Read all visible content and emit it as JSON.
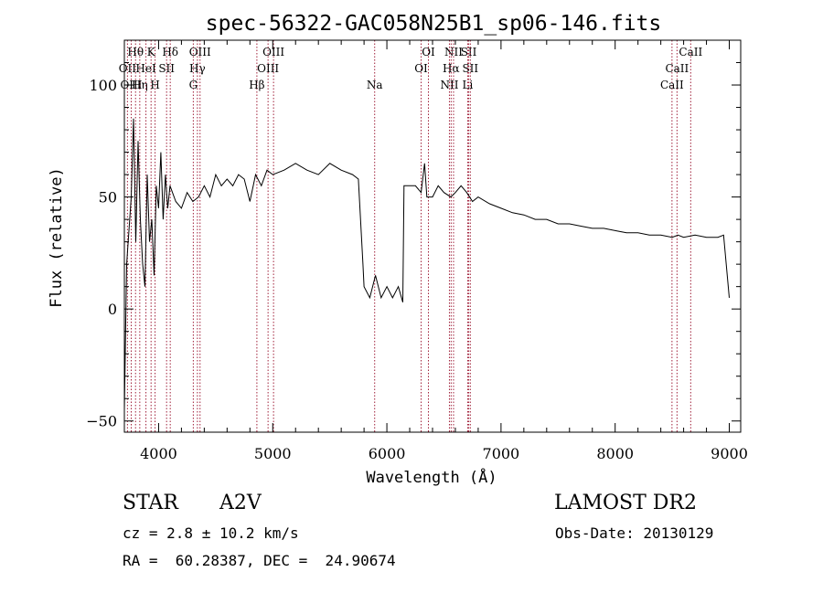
{
  "chart_data": {
    "type": "line",
    "title": "spec-56322-GAC058N25B1_sp06-146.fits",
    "xlabel": "Wavelength (Å)",
    "ylabel": "Flux (relative)",
    "xlim": [
      3700,
      9100
    ],
    "ylim": [
      -55,
      120
    ],
    "x_ticks": [
      4000,
      5000,
      6000,
      7000,
      8000,
      9000
    ],
    "y_ticks": [
      -50,
      0,
      50,
      100
    ],
    "grid": false,
    "line_color": "#000000",
    "marker_color": "#a0203a",
    "series": [
      {
        "x": [
          3700,
          3720,
          3740,
          3760,
          3780,
          3800,
          3820,
          3840,
          3860,
          3880,
          3900,
          3920,
          3940,
          3960,
          3980,
          4000,
          4020,
          4040,
          4060,
          4080,
          4100,
          4150,
          4200,
          4250,
          4300,
          4350,
          4400,
          4450,
          4500,
          4550,
          4600,
          4650,
          4700,
          4750,
          4800,
          4850,
          4900,
          4950,
          5000,
          5100,
          5200,
          5300,
          5400,
          5500,
          5600,
          5700,
          5750,
          5790,
          5800,
          5850,
          5900,
          5950,
          6000,
          6050,
          6100,
          6140,
          6150,
          6200,
          6250,
          6300,
          6330,
          6350,
          6400,
          6450,
          6500,
          6560,
          6600,
          6650,
          6700,
          6750,
          6800,
          6900,
          7000,
          7100,
          7200,
          7300,
          7400,
          7500,
          7600,
          7700,
          7800,
          7900,
          8000,
          8100,
          8200,
          8300,
          8400,
          8500,
          8550,
          8600,
          8700,
          8800,
          8900,
          8950,
          9000
        ],
        "y": [
          -45,
          20,
          35,
          50,
          85,
          30,
          75,
          40,
          20,
          10,
          60,
          30,
          40,
          15,
          55,
          45,
          70,
          40,
          60,
          45,
          55,
          48,
          45,
          52,
          48,
          50,
          55,
          50,
          60,
          55,
          58,
          55,
          60,
          58,
          48,
          60,
          55,
          62,
          60,
          62,
          65,
          62,
          60,
          65,
          62,
          60,
          58,
          20,
          10,
          5,
          15,
          5,
          10,
          5,
          10,
          3,
          55,
          55,
          55,
          52,
          65,
          50,
          50,
          55,
          52,
          50,
          52,
          55,
          52,
          48,
          50,
          47,
          45,
          43,
          42,
          40,
          40,
          38,
          38,
          37,
          36,
          36,
          35,
          34,
          34,
          33,
          33,
          32,
          33,
          32,
          33,
          32,
          32,
          33,
          5
        ]
      }
    ],
    "line_markers": [
      {
        "label": "Hθ",
        "x": 3798,
        "row": 1
      },
      {
        "label": "OII",
        "x": 3727,
        "row": 2
      },
      {
        "label": "OIII",
        "x": 3760,
        "row": 3
      },
      {
        "label": "Hη",
        "x": 3835,
        "row": 3
      },
      {
        "label": "K",
        "x": 3934,
        "row": 1
      },
      {
        "label": "HeI",
        "x": 3889,
        "row": 2
      },
      {
        "label": "SII",
        "x": 4070,
        "row": 2
      },
      {
        "label": "H",
        "x": 3969,
        "row": 3
      },
      {
        "label": "Hδ",
        "x": 4102,
        "row": 1
      },
      {
        "label": "OIII",
        "x": 4363,
        "row": 1
      },
      {
        "label": "Hγ",
        "x": 4340,
        "row": 2
      },
      {
        "label": "G",
        "x": 4304,
        "row": 3
      },
      {
        "label": "OIII",
        "x": 5007,
        "row": 1
      },
      {
        "label": "OIII",
        "x": 4959,
        "row": 2
      },
      {
        "label": "Hβ",
        "x": 4861,
        "row": 3
      },
      {
        "label": "Na",
        "x": 5893,
        "row": 3
      },
      {
        "label": "OI",
        "x": 6364,
        "row": 1
      },
      {
        "label": "OI",
        "x": 6300,
        "row": 2
      },
      {
        "label": "NII",
        "x": 6584,
        "row": 1
      },
      {
        "label": "SII",
        "x": 6717,
        "row": 1
      },
      {
        "label": "Hα",
        "x": 6563,
        "row": 2
      },
      {
        "label": "SII",
        "x": 6731,
        "row": 2
      },
      {
        "label": "NII",
        "x": 6548,
        "row": 3
      },
      {
        "label": "Li",
        "x": 6708,
        "row": 3
      },
      {
        "label": "CaII",
        "x": 8662,
        "row": 1
      },
      {
        "label": "CaII",
        "x": 8542,
        "row": 2
      },
      {
        "label": "CaII",
        "x": 8498,
        "row": 3
      }
    ]
  },
  "info": {
    "class": "STAR",
    "subclass": "A2V",
    "survey": "LAMOST DR2",
    "cz": "cz = 2.8 ± 10.2 km/s",
    "obs_date": "Obs-Date: 20130129",
    "radec": "RA =  60.28387, DEC =  24.90674"
  }
}
